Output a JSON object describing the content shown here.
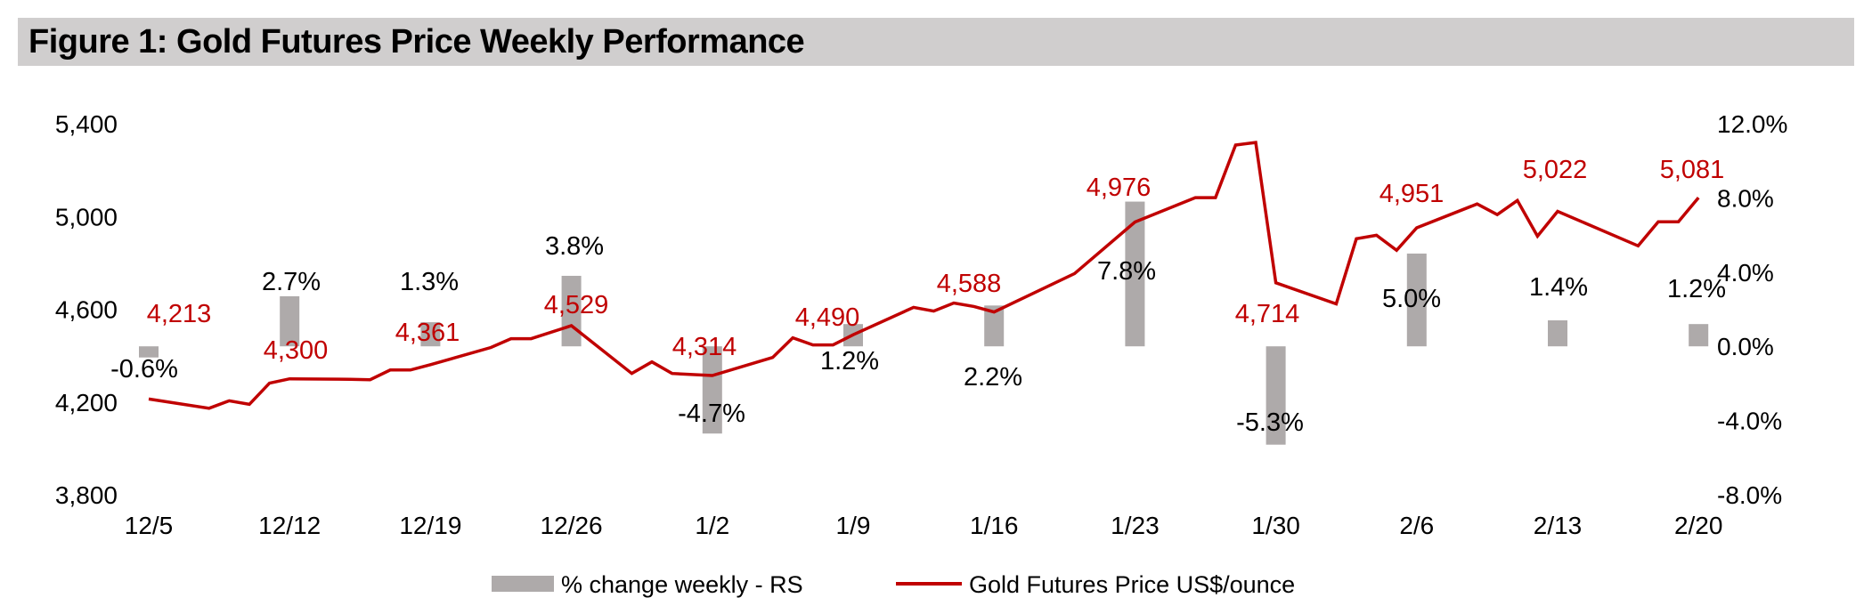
{
  "chart_data": {
    "type": "bar+line",
    "title": "Figure 1: Gold Futures Price Weekly Performance",
    "colors": {
      "bar": "#aeaaaa",
      "line": "#c00000",
      "price_label": "#c00000",
      "title_bg": "#d0cece"
    },
    "x_ticks": [
      "12/5",
      "12/12",
      "12/19",
      "12/26",
      "1/2",
      "1/9",
      "1/16",
      "1/23",
      "1/30",
      "2/6",
      "2/13",
      "2/20"
    ],
    "y_left": {
      "range": [
        3800,
        5400
      ],
      "ticks": [
        "5,400",
        "5,000",
        "4,600",
        "4,200",
        "3,800"
      ]
    },
    "y_right": {
      "range": [
        -8,
        12
      ],
      "ticks": [
        "12.0%",
        "8.0%",
        "4.0%",
        "0.0%",
        "-4.0%",
        "-8.0%"
      ]
    },
    "grid": false,
    "legend_position": "bottom",
    "series": [
      {
        "name": "% change weekly - RS",
        "type": "bar",
        "axis": "right",
        "x": [
          "12/5",
          "12/12",
          "12/19",
          "12/26",
          "1/2",
          "1/9",
          "1/16",
          "1/23",
          "1/30",
          "2/6",
          "2/13",
          "2/20"
        ],
        "values": [
          -0.6,
          2.7,
          1.3,
          3.8,
          -4.7,
          1.2,
          2.2,
          7.8,
          -5.3,
          5.0,
          1.4,
          1.2
        ],
        "labels": [
          "-0.6%",
          "2.7%",
          "1.3%",
          "3.8%",
          "-4.7%",
          "1.2%",
          "2.2%",
          "7.8%",
          "-5.3%",
          "5.0%",
          "1.4%",
          "1.2%"
        ]
      },
      {
        "name": "Gold Futures Price US$/ounce",
        "type": "line",
        "axis": "left",
        "points": [
          [
            "12/5",
            4213
          ],
          [
            "12/8",
            4173
          ],
          [
            "12/9",
            4205
          ],
          [
            "12/10",
            4190
          ],
          [
            "12/11",
            4281
          ],
          [
            "12/12",
            4300
          ],
          [
            "12/15",
            4298
          ],
          [
            "12/16",
            4296
          ],
          [
            "12/17",
            4338
          ],
          [
            "12/18",
            4338
          ],
          [
            "12/19",
            4361
          ],
          [
            "12/22",
            4435
          ],
          [
            "12/23",
            4473
          ],
          [
            "12/24",
            4473
          ],
          [
            "12/26",
            4529
          ],
          [
            "12/29",
            4323
          ],
          [
            "12/30",
            4373
          ],
          [
            "12/31",
            4323
          ],
          [
            "1/2",
            4314
          ],
          [
            "1/5",
            4392
          ],
          [
            "1/6",
            4477
          ],
          [
            "1/7",
            4446
          ],
          [
            "1/8",
            4446
          ],
          [
            "1/9",
            4490
          ],
          [
            "1/12",
            4608
          ],
          [
            "1/13",
            4592
          ],
          [
            "1/14",
            4627
          ],
          [
            "1/15",
            4612
          ],
          [
            "1/16",
            4588
          ],
          [
            "1/20",
            4754
          ],
          [
            "1/23",
            4976
          ],
          [
            "1/26",
            5081
          ],
          [
            "1/27",
            5081
          ],
          [
            "1/28",
            5308
          ],
          [
            "1/29",
            5319
          ],
          [
            "1/30",
            4714
          ],
          [
            "2/2",
            4623
          ],
          [
            "2/3",
            4904
          ],
          [
            "2/4",
            4919
          ],
          [
            "2/5",
            4854
          ],
          [
            "2/6",
            4951
          ],
          [
            "2/9",
            5054
          ],
          [
            "2/10",
            5008
          ],
          [
            "2/11",
            5069
          ],
          [
            "2/12",
            4915
          ],
          [
            "2/13",
            5022
          ],
          [
            "2/17",
            4873
          ],
          [
            "2/18",
            4977
          ],
          [
            "2/19",
            4977
          ],
          [
            "2/20",
            5081
          ]
        ],
        "labels": [
          "4,213",
          "4,300",
          "4,361",
          "4,529",
          "4,314",
          "4,490",
          "4,588",
          "4,976",
          "4,714",
          "4,951",
          "5,022",
          "5,081"
        ]
      }
    ]
  }
}
